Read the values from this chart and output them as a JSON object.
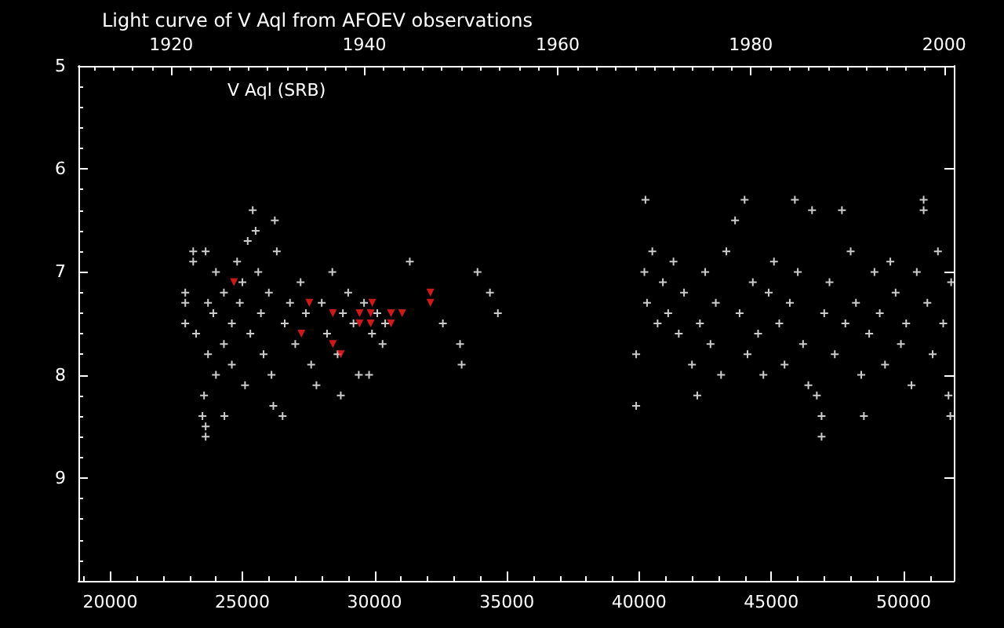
{
  "chart_data": {
    "type": "scatter",
    "title": "Light curve of V Aql from AFOEV observations",
    "annotations": [
      "V Aql (SRB)"
    ],
    "xlim": [
      18800,
      51900
    ],
    "xticks": [
      20000,
      25000,
      30000,
      35000,
      40000,
      45000,
      50000
    ],
    "x2lim": [
      1910.4,
      2001.0
    ],
    "x2ticks": [
      1920,
      1940,
      1960,
      1980,
      2000
    ],
    "ylim": [
      10,
      5
    ],
    "yticks": [
      5,
      6,
      7,
      8,
      9,
      {
        "value": 10,
        "label": null
      }
    ],
    "grid": false,
    "marker": "cross",
    "series": [
      {
        "color": "#ffffff",
        "x": [
          22840,
          22840,
          22840,
          23140,
          23140,
          23250,
          23490,
          23550,
          23610,
          23610,
          23610,
          23700,
          23700,
          23900,
          24000,
          24000,
          24320,
          24300,
          24300,
          24600,
          24600,
          24800,
          24900,
          25000,
          25100,
          25200,
          25390,
          25300,
          25500,
          25600,
          25700,
          25800,
          26000,
          26100,
          26170,
          26225,
          26300,
          26520,
          26600,
          26800,
          27000,
          27200,
          27400,
          27600,
          27800,
          28000,
          28200,
          28400,
          28600,
          28720,
          28800,
          29000,
          29200,
          29400,
          29600,
          29790,
          29900,
          30100,
          30300,
          30400,
          31330,
          32580,
          33230,
          33290,
          33890,
          34360,
          34660,
          39890,
          39890,
          40240,
          40200,
          40300,
          40500,
          40700,
          40900,
          41100,
          41300,
          41500,
          41700,
          42000,
          42200,
          42300,
          42500,
          42700,
          42900,
          43100,
          43300,
          43630,
          43800,
          43990,
          44100,
          44300,
          44500,
          44700,
          44900,
          45100,
          45300,
          45500,
          45700,
          45890,
          46000,
          46200,
          46400,
          46540,
          46720,
          46900,
          46900,
          47000,
          47200,
          47400,
          47670,
          47800,
          48000,
          48200,
          48400,
          48500,
          48700,
          48900,
          49100,
          49300,
          49500,
          49700,
          49900,
          50100,
          50300,
          50500,
          50760,
          50760,
          50900,
          51100,
          51300,
          51500,
          51700,
          51770,
          51800
        ],
        "values": [
          7.2,
          7.3,
          7.5,
          6.8,
          6.9,
          7.6,
          8.4,
          8.2,
          8.6,
          8.5,
          6.8,
          7.3,
          7.8,
          7.4,
          7.0,
          8.0,
          8.4,
          7.2,
          7.7,
          7.5,
          7.9,
          6.9,
          7.3,
          7.1,
          8.1,
          6.7,
          6.4,
          7.6,
          6.6,
          7.0,
          7.4,
          7.8,
          7.2,
          8.0,
          8.3,
          6.5,
          6.8,
          8.4,
          7.5,
          7.3,
          7.7,
          7.1,
          7.4,
          7.9,
          8.1,
          7.3,
          7.6,
          7.0,
          7.8,
          8.2,
          7.4,
          7.2,
          7.5,
          8.0,
          7.3,
          8.0,
          7.6,
          7.4,
          7.7,
          7.5,
          6.9,
          7.5,
          7.7,
          7.9,
          7.0,
          7.2,
          7.4,
          7.8,
          8.3,
          6.3,
          7.0,
          7.3,
          6.8,
          7.5,
          7.1,
          7.4,
          6.9,
          7.6,
          7.2,
          7.9,
          8.2,
          7.5,
          7.0,
          7.7,
          7.3,
          8.0,
          6.8,
          6.5,
          7.4,
          6.3,
          7.8,
          7.1,
          7.6,
          8.0,
          7.2,
          6.9,
          7.5,
          7.9,
          7.3,
          6.3,
          7.0,
          7.7,
          8.1,
          6.4,
          8.2,
          8.4,
          8.6,
          7.4,
          7.1,
          7.8,
          6.4,
          7.5,
          6.8,
          7.3,
          8.0,
          8.4,
          7.6,
          7.0,
          7.4,
          7.9,
          6.9,
          7.2,
          7.7,
          7.5,
          8.1,
          7.0,
          6.3,
          6.4,
          7.3,
          7.8,
          6.8,
          7.5,
          8.2,
          8.4,
          7.1
        ]
      },
      {
        "color": "#ff2020",
        "marker": "triangle",
        "x": [
          24680,
          27530,
          28420,
          29430,
          29850,
          30620,
          31040,
          32110,
          32110,
          29910,
          29430,
          29850,
          28420,
          28720,
          27230,
          30620
        ],
        "values": [
          7.1,
          7.3,
          7.4,
          7.4,
          7.4,
          7.4,
          7.4,
          7.2,
          7.3,
          7.3,
          7.5,
          7.5,
          7.7,
          7.8,
          7.6,
          7.5
        ]
      }
    ]
  }
}
